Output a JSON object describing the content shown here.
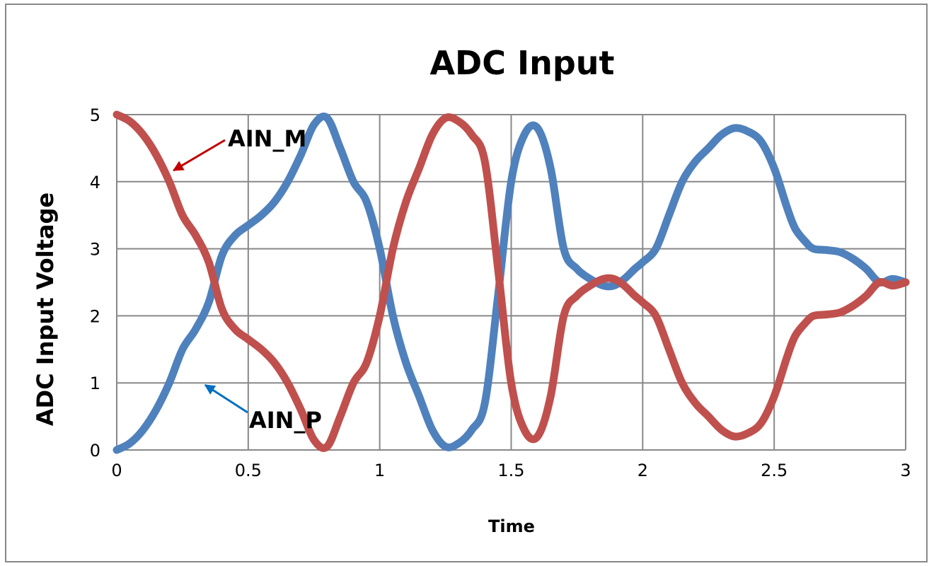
{
  "chart_data": {
    "type": "line",
    "title": "ADC Input",
    "xlabel": "Time",
    "ylabel": "ADC Input Voltage",
    "xlim": [
      0,
      3
    ],
    "ylim": [
      0,
      5
    ],
    "xticks": [
      "0",
      "0.5",
      "1",
      "1.5",
      "2",
      "2.5",
      "3"
    ],
    "yticks": [
      "0",
      "1",
      "2",
      "3",
      "4",
      "5"
    ],
    "grid": true,
    "legend": "none",
    "series": [
      {
        "name": "AIN_P",
        "color": "#4f81bd",
        "x": [
          0,
          0.05,
          0.1,
          0.15,
          0.2,
          0.25,
          0.3,
          0.35,
          0.4,
          0.45,
          0.5,
          0.55,
          0.6,
          0.65,
          0.7,
          0.75,
          0.8,
          0.85,
          0.9,
          0.95,
          1.0,
          1.05,
          1.1,
          1.15,
          1.2,
          1.25,
          1.3,
          1.35,
          1.4,
          1.45,
          1.5,
          1.55,
          1.6,
          1.65,
          1.7,
          1.75,
          1.8,
          1.85,
          1.89,
          1.93,
          1.97,
          2.0,
          2.05,
          2.1,
          2.15,
          2.2,
          2.25,
          2.3,
          2.35,
          2.4,
          2.45,
          2.5,
          2.55,
          2.58,
          2.62,
          2.65,
          2.7,
          2.75,
          2.8,
          2.85,
          2.9,
          2.95,
          3.0
        ],
        "y": [
          0,
          0.1,
          0.3,
          0.6,
          1.0,
          1.5,
          1.8,
          2.2,
          2.9,
          3.2,
          3.35,
          3.5,
          3.7,
          4.0,
          4.4,
          4.85,
          4.95,
          4.5,
          4.0,
          3.7,
          3.0,
          2.0,
          1.3,
          0.8,
          0.3,
          0.05,
          0.1,
          0.3,
          0.7,
          2.3,
          4.0,
          4.7,
          4.8,
          4.2,
          3.0,
          2.7,
          2.55,
          2.45,
          2.45,
          2.55,
          2.7,
          2.8,
          3.0,
          3.5,
          4.0,
          4.3,
          4.5,
          4.7,
          4.8,
          4.75,
          4.6,
          4.2,
          3.6,
          3.3,
          3.1,
          3.0,
          2.98,
          2.95,
          2.85,
          2.7,
          2.5,
          2.55,
          2.5
        ]
      },
      {
        "name": "AIN_M",
        "color": "#c0504d",
        "x": [
          0,
          0.05,
          0.1,
          0.15,
          0.2,
          0.25,
          0.3,
          0.35,
          0.4,
          0.45,
          0.5,
          0.55,
          0.6,
          0.65,
          0.7,
          0.75,
          0.8,
          0.85,
          0.9,
          0.95,
          1.0,
          1.05,
          1.1,
          1.15,
          1.2,
          1.25,
          1.3,
          1.35,
          1.4,
          1.45,
          1.5,
          1.55,
          1.6,
          1.65,
          1.7,
          1.75,
          1.8,
          1.85,
          1.89,
          1.93,
          1.97,
          2.0,
          2.05,
          2.1,
          2.15,
          2.2,
          2.25,
          2.3,
          2.35,
          2.4,
          2.45,
          2.5,
          2.55,
          2.58,
          2.62,
          2.65,
          2.7,
          2.75,
          2.8,
          2.85,
          2.9,
          2.95,
          3.0
        ],
        "y": [
          5,
          4.9,
          4.7,
          4.4,
          4.0,
          3.5,
          3.2,
          2.8,
          2.1,
          1.8,
          1.65,
          1.5,
          1.3,
          1.0,
          0.6,
          0.15,
          0.05,
          0.5,
          1.0,
          1.3,
          2.0,
          3.0,
          3.7,
          4.2,
          4.7,
          4.95,
          4.9,
          4.7,
          4.3,
          2.7,
          1.0,
          0.3,
          0.2,
          0.8,
          2.0,
          2.3,
          2.45,
          2.55,
          2.55,
          2.45,
          2.3,
          2.2,
          2.0,
          1.5,
          1.0,
          0.7,
          0.5,
          0.3,
          0.2,
          0.25,
          0.4,
          0.8,
          1.4,
          1.7,
          1.9,
          2.0,
          2.02,
          2.05,
          2.15,
          2.3,
          2.5,
          2.45,
          2.5
        ]
      }
    ],
    "annotations": [
      {
        "text": "AIN_M",
        "series": "AIN_M",
        "target_x": 0.2,
        "target_y": 4.2,
        "color": "#c00000"
      },
      {
        "text": "AIN_P",
        "series": "AIN_P",
        "target_x": 0.32,
        "target_y": 1.0,
        "color": "#0070c0"
      }
    ]
  }
}
